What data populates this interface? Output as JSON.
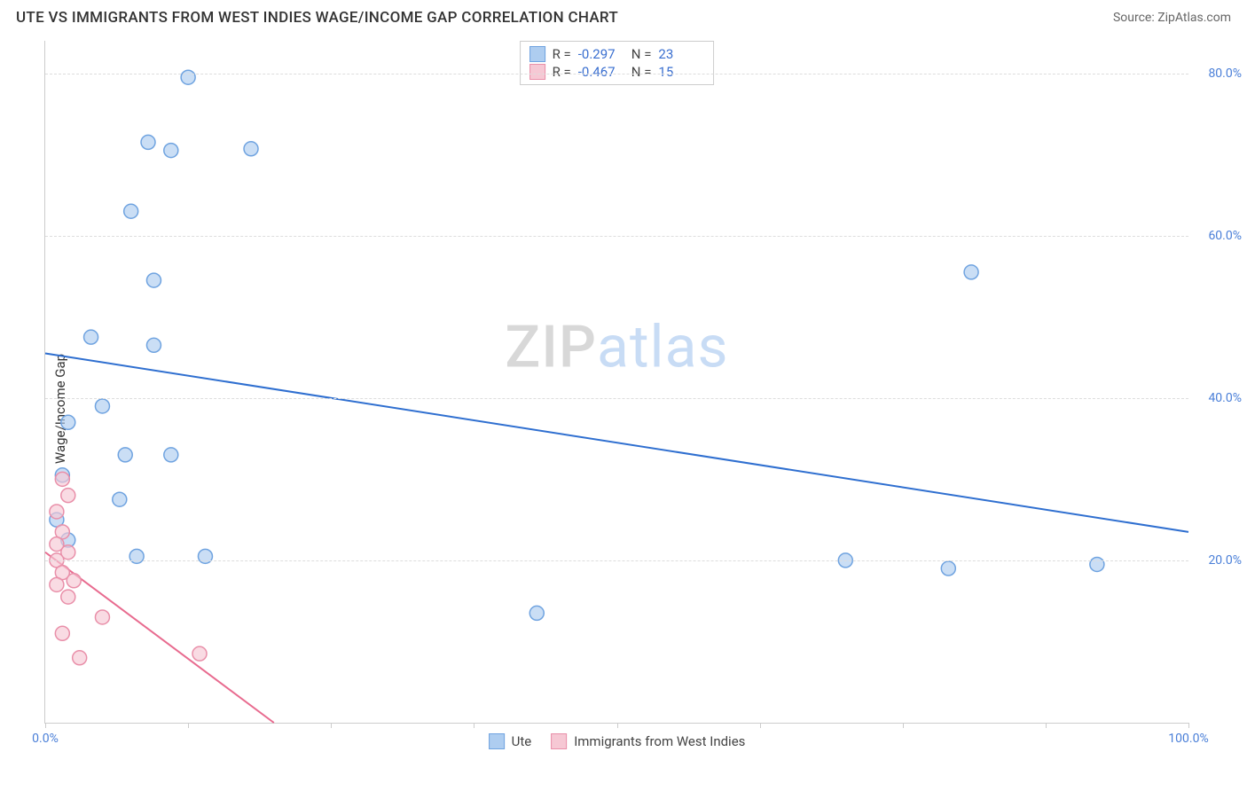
{
  "title": "UTE VS IMMIGRANTS FROM WEST INDIES WAGE/INCOME GAP CORRELATION CHART",
  "source": "Source: ZipAtlas.com",
  "ylabel": "Wage/Income Gap",
  "watermark": {
    "zip": "ZIP",
    "atlas": "atlas"
  },
  "chart": {
    "type": "scatter",
    "xlim": [
      0,
      100
    ],
    "ylim": [
      0,
      84
    ],
    "x_ticks": [
      0,
      12.5,
      25,
      37.5,
      50,
      62.5,
      75,
      87.5,
      100
    ],
    "x_tick_labels": {
      "0": "0.0%",
      "100": "100.0%"
    },
    "y_gridlines": [
      20,
      40,
      60,
      80
    ],
    "y_tick_labels": {
      "20": "20.0%",
      "40": "40.0%",
      "60": "60.0%",
      "80": "80.0%"
    },
    "background_color": "#ffffff",
    "grid_color": "#dddddd",
    "axis_color": "#cccccc",
    "tick_label_color": "#4a7fd8",
    "series": [
      {
        "name": "Ute",
        "color_fill": "#aecdf0",
        "color_stroke": "#6fa3e0",
        "marker_r": 8,
        "R": "-0.297",
        "N": "23",
        "trend": {
          "x1": 0,
          "y1": 45.5,
          "x2": 100,
          "y2": 23.5,
          "color": "#2f6fd0",
          "width": 2
        },
        "points": [
          {
            "x": 12.5,
            "y": 79.5
          },
          {
            "x": 9.0,
            "y": 71.5
          },
          {
            "x": 11.0,
            "y": 70.5
          },
          {
            "x": 18.0,
            "y": 70.7
          },
          {
            "x": 7.5,
            "y": 63.0
          },
          {
            "x": 9.5,
            "y": 54.5
          },
          {
            "x": 4.0,
            "y": 47.5
          },
          {
            "x": 9.5,
            "y": 46.5
          },
          {
            "x": 5.0,
            "y": 39.0
          },
          {
            "x": 2.0,
            "y": 37.0
          },
          {
            "x": 7.0,
            "y": 33.0
          },
          {
            "x": 11.0,
            "y": 33.0
          },
          {
            "x": 1.5,
            "y": 30.5
          },
          {
            "x": 6.5,
            "y": 27.5
          },
          {
            "x": 1.0,
            "y": 25.0
          },
          {
            "x": 2.0,
            "y": 22.5
          },
          {
            "x": 8.0,
            "y": 20.5
          },
          {
            "x": 14.0,
            "y": 20.5
          },
          {
            "x": 43.0,
            "y": 13.5
          },
          {
            "x": 70.0,
            "y": 20.0
          },
          {
            "x": 79.0,
            "y": 19.0
          },
          {
            "x": 92.0,
            "y": 19.5
          },
          {
            "x": 81.0,
            "y": 55.5
          }
        ]
      },
      {
        "name": "Immigrants from West Indies",
        "color_fill": "#f6c8d4",
        "color_stroke": "#e98fa9",
        "marker_r": 8,
        "R": "-0.467",
        "N": "15",
        "trend": {
          "x1": 0,
          "y1": 21.0,
          "x2": 20,
          "y2": 0,
          "color": "#e86b8f",
          "width": 2
        },
        "points": [
          {
            "x": 1.5,
            "y": 30.0
          },
          {
            "x": 2.0,
            "y": 28.0
          },
          {
            "x": 1.0,
            "y": 26.0
          },
          {
            "x": 1.5,
            "y": 23.5
          },
          {
            "x": 1.0,
            "y": 22.0
          },
          {
            "x": 2.0,
            "y": 21.0
          },
          {
            "x": 1.0,
            "y": 20.0
          },
          {
            "x": 1.5,
            "y": 18.5
          },
          {
            "x": 2.5,
            "y": 17.5
          },
          {
            "x": 1.0,
            "y": 17.0
          },
          {
            "x": 2.0,
            "y": 15.5
          },
          {
            "x": 5.0,
            "y": 13.0
          },
          {
            "x": 3.0,
            "y": 8.0
          },
          {
            "x": 13.5,
            "y": 8.5
          },
          {
            "x": 1.5,
            "y": 11.0
          }
        ]
      }
    ]
  }
}
